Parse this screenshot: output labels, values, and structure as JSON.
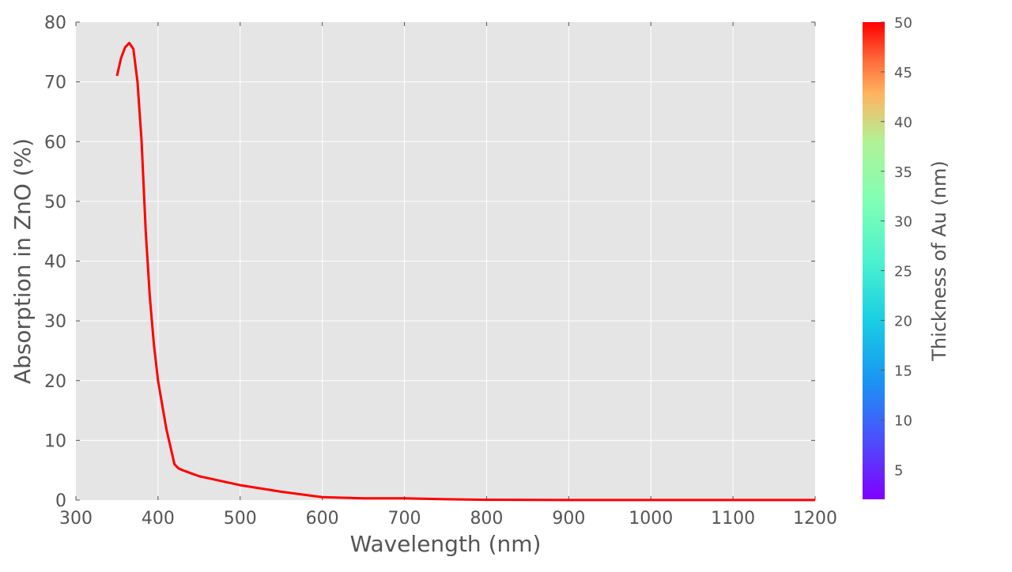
{
  "chart_data": {
    "type": "line",
    "xlabel": "Wavelength (nm)",
    "ylabel": "Absorption in ZnO (%)",
    "xlim": [
      300,
      1200
    ],
    "ylim": [
      0,
      80
    ],
    "x_ticks": [
      300,
      400,
      500,
      600,
      700,
      800,
      900,
      1000,
      1100,
      1200
    ],
    "y_ticks": [
      0,
      10,
      20,
      30,
      40,
      50,
      60,
      70,
      80
    ],
    "grid": true,
    "series": [
      {
        "color": "#ff0000",
        "x": [
          350,
          355,
          360,
          365,
          370,
          375,
          380,
          385,
          390,
          395,
          400,
          410,
          420,
          425,
          430,
          450,
          500,
          550,
          600,
          650,
          700,
          750,
          800,
          900,
          1000,
          1100,
          1200
        ],
        "y": [
          71,
          74,
          75.8,
          76.5,
          75.5,
          70,
          60,
          45,
          34,
          26,
          20,
          12,
          6,
          5.3,
          5,
          4,
          2.5,
          1.4,
          0.5,
          0.3,
          0.3,
          0.15,
          0.05,
          0.02,
          0.02,
          0.02,
          0.02
        ]
      }
    ],
    "colorbar": {
      "label": "Thickness of Au (nm)",
      "range": [
        2,
        50
      ],
      "ticks": [
        5,
        10,
        15,
        20,
        25,
        30,
        35,
        40,
        45,
        50
      ],
      "colormap": "rainbow"
    }
  }
}
